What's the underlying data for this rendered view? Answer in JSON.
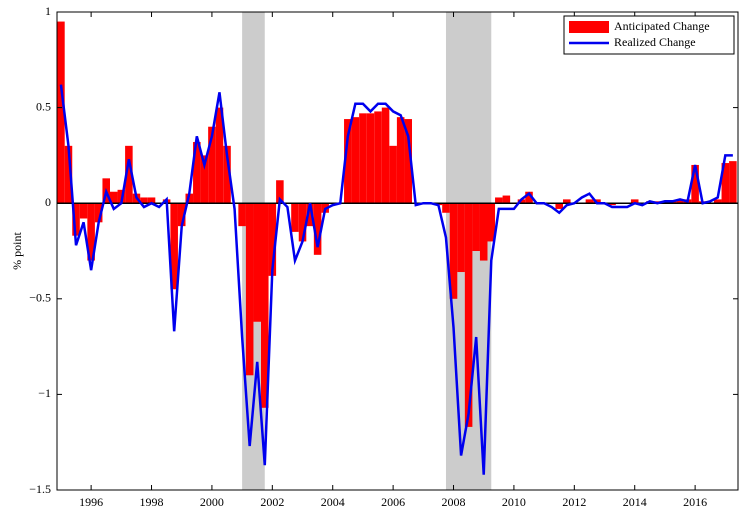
{
  "chart_data": {
    "type": "bar-line",
    "ylabel": "% point",
    "xlim": [
      1994.87,
      2017.42
    ],
    "ylim": [
      -1.5,
      1
    ],
    "xticks": [
      1996,
      1998,
      2000,
      2002,
      2004,
      2006,
      2008,
      2010,
      2012,
      2014,
      2016
    ],
    "yticks": [
      {
        "value": -1.5,
        "label": "−1.5"
      },
      {
        "value": -1,
        "label": "−1"
      },
      {
        "value": -0.5,
        "label": "−0.5"
      },
      0,
      0.5,
      1
    ],
    "shaded": [
      [
        2001.0,
        2001.75
      ],
      [
        2007.75,
        2009.25
      ]
    ],
    "shade_color": "#cccccc",
    "legend": "upper right",
    "bar_width": 0.25,
    "x": [
      1995,
      1995.25,
      1995.5,
      1995.75,
      1996,
      1996.25,
      1996.5,
      1996.75,
      1997,
      1997.25,
      1997.5,
      1997.75,
      1998,
      1998.25,
      1998.5,
      1998.75,
      1999,
      1999.25,
      1999.5,
      1999.75,
      2000,
      2000.25,
      2000.5,
      2000.75,
      2001,
      2001.25,
      2001.5,
      2001.75,
      2002,
      2002.25,
      2002.5,
      2002.75,
      2003,
      2003.25,
      2003.5,
      2003.75,
      2004,
      2004.25,
      2004.5,
      2004.75,
      2005,
      2005.25,
      2005.5,
      2005.75,
      2006,
      2006.25,
      2006.5,
      2006.75,
      2007,
      2007.25,
      2007.5,
      2007.75,
      2008,
      2008.25,
      2008.5,
      2008.75,
      2009,
      2009.25,
      2009.5,
      2009.75,
      2010,
      2010.25,
      2010.5,
      2010.75,
      2011,
      2011.25,
      2011.5,
      2011.75,
      2012,
      2012.25,
      2012.5,
      2012.75,
      2013,
      2013.25,
      2013.5,
      2013.75,
      2014,
      2014.25,
      2014.5,
      2014.75,
      2015,
      2015.25,
      2015.5,
      2015.75,
      2016,
      2016.25,
      2016.5,
      2016.75,
      2017,
      2017.25
    ],
    "series": [
      {
        "name": "Anticipated Change",
        "color": "#ff0000",
        "kind": "bar",
        "values": [
          0.95,
          0.3,
          -0.17,
          -0.08,
          -0.3,
          -0.1,
          0.13,
          0.06,
          0.07,
          0.3,
          0.05,
          0.03,
          0.03,
          0,
          0.02,
          -0.45,
          -0.12,
          0.05,
          0.32,
          0.25,
          0.4,
          0.5,
          0.3,
          0,
          -0.12,
          -0.9,
          -0.62,
          -1.07,
          -0.38,
          0.12,
          0,
          -0.15,
          -0.2,
          -0.12,
          -0.27,
          -0.05,
          0,
          0,
          0.44,
          0.45,
          0.47,
          0.47,
          0.48,
          0.5,
          0.3,
          0.45,
          0.44,
          0,
          0,
          0,
          -0.01,
          -0.05,
          -0.5,
          -0.36,
          -1.17,
          -0.25,
          -0.3,
          -0.2,
          0.03,
          0.04,
          0,
          0.02,
          0.06,
          0,
          0,
          0,
          -0.03,
          0.02,
          0,
          0,
          0.02,
          0.02,
          0,
          -0.01,
          0,
          0,
          0.02,
          0,
          0.01,
          0.01,
          0.01,
          0.01,
          0.02,
          0.02,
          0.2,
          0.01,
          0,
          0.02,
          0.21,
          0.22
        ]
      },
      {
        "name": "Realized Change",
        "color": "#0000ee",
        "kind": "line",
        "values": [
          0.62,
          0.3,
          -0.22,
          -0.1,
          -0.35,
          -0.1,
          0.06,
          -0.03,
          0,
          0.23,
          0.03,
          -0.02,
          0,
          -0.02,
          0.02,
          -0.67,
          -0.12,
          0.05,
          0.35,
          0.2,
          0.35,
          0.58,
          0.25,
          -0.03,
          -0.7,
          -1.27,
          -0.83,
          -1.37,
          -0.35,
          0.02,
          -0.02,
          -0.3,
          -0.2,
          0,
          -0.23,
          -0.03,
          -0.01,
          0,
          0.35,
          0.52,
          0.52,
          0.48,
          0.52,
          0.52,
          0.48,
          0.46,
          0.35,
          -0.01,
          0,
          0,
          -0.01,
          -0.18,
          -0.65,
          -1.32,
          -1.1,
          -0.7,
          -1.42,
          -0.3,
          -0.03,
          -0.03,
          -0.03,
          0.02,
          0.05,
          0,
          0,
          -0.02,
          -0.05,
          -0.01,
          0,
          0.03,
          0.05,
          0,
          0,
          -0.02,
          -0.02,
          -0.02,
          0,
          -0.01,
          0.01,
          0,
          0.01,
          0.01,
          0.02,
          0.01,
          0.2,
          0,
          0.01,
          0.03,
          0.25,
          0.25
        ]
      }
    ]
  }
}
